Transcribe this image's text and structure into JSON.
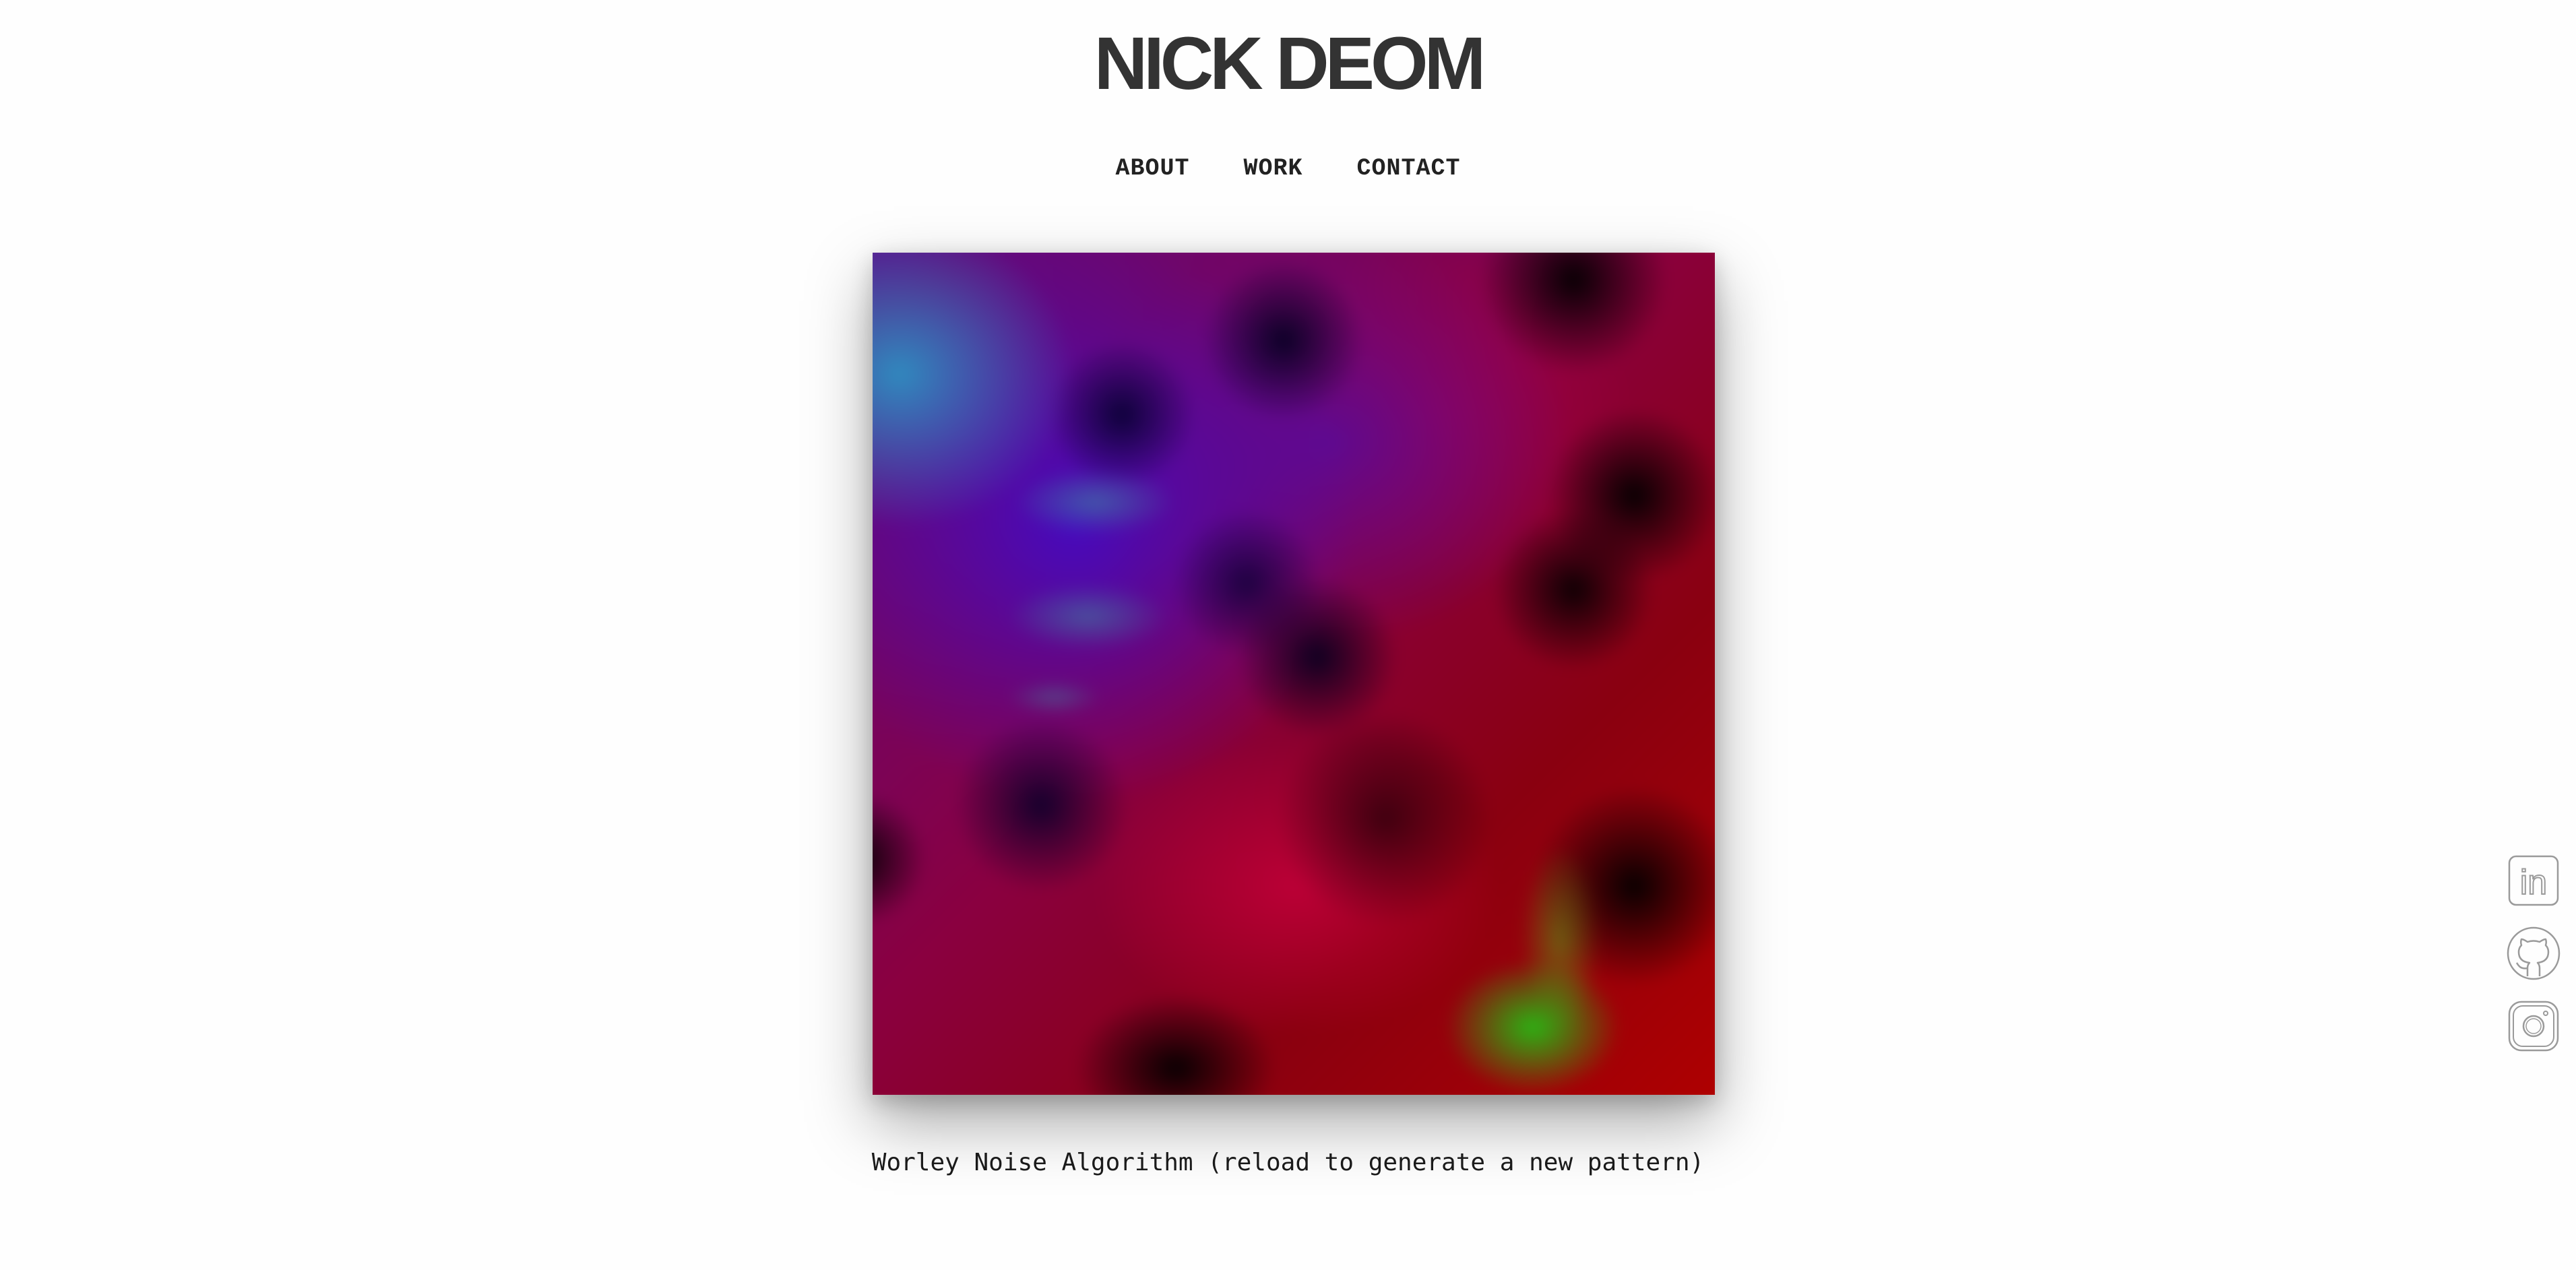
{
  "header": {
    "title": "NICK DEOM"
  },
  "nav": {
    "items": [
      {
        "label": "ABOUT"
      },
      {
        "label": "WORK"
      },
      {
        "label": "CONTACT"
      }
    ]
  },
  "main": {
    "caption": "Worley Noise Algorithm (reload to generate a new pattern)"
  },
  "social": {
    "icons": [
      "linkedin-icon",
      "github-icon",
      "instagram-icon"
    ],
    "linkedin_text": "in"
  },
  "colors": {
    "title": "#333333",
    "nav": "#222222",
    "icon_stroke": "#9a9a9a"
  }
}
